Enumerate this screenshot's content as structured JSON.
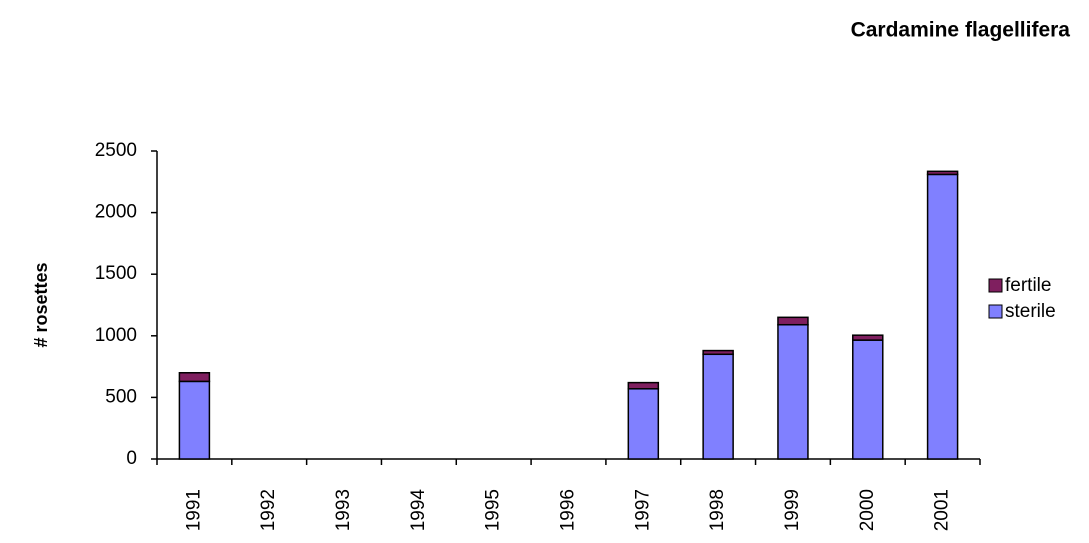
{
  "chart_data": {
    "type": "stacked-bar",
    "title": "Cardamine flagellifera",
    "y_label": "# rosettes",
    "categories": [
      "1991",
      "1992",
      "1993",
      "1994",
      "1995",
      "1996",
      "1997",
      "1998",
      "1999",
      "2000",
      "2001"
    ],
    "series": [
      {
        "name": "sterile",
        "color": "#8080ff",
        "values": [
          630,
          null,
          null,
          null,
          null,
          null,
          570,
          850,
          1090,
          965,
          2310
        ]
      },
      {
        "name": "fertile",
        "color": "#7f1f5f",
        "values": [
          70,
          null,
          null,
          null,
          null,
          null,
          50,
          30,
          60,
          40,
          25
        ]
      }
    ],
    "ylim": [
      0,
      2500
    ],
    "yticks": [
      0,
      500,
      1000,
      1500,
      2000,
      2500
    ],
    "grid": false,
    "legend": "right"
  }
}
